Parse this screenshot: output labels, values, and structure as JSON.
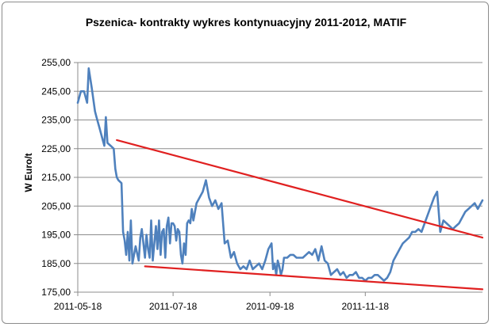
{
  "chart_data": {
    "type": "line",
    "title": "Pszenica- kontrakty wykres kontynuacyjny 2011-2012, MATIF",
    "xlabel": "",
    "ylabel": "W Euro/t",
    "ylim": [
      175,
      255
    ],
    "yticks": [
      "175,00",
      "185,00",
      "195,00",
      "205,00",
      "215,00",
      "225,00",
      "235,00",
      "245,00",
      "255,00"
    ],
    "xticks": [
      "2011-05-18",
      "2011-07-18",
      "2011-09-18",
      "2011-11-18"
    ],
    "x_range_days": [
      0,
      259
    ],
    "grid": "horizontal",
    "legend": "none",
    "series": [
      {
        "color": "#4f81bd",
        "x": [
          0,
          2,
          4,
          6,
          7,
          9,
          11,
          12,
          14,
          16,
          17,
          18,
          19,
          21,
          23,
          24,
          25,
          26,
          28,
          29,
          30,
          31,
          32,
          33,
          34,
          35,
          37,
          39,
          40,
          41,
          43,
          44,
          45,
          46,
          47,
          48,
          50,
          51,
          52,
          53,
          54,
          55,
          56,
          57,
          58,
          59,
          60,
          61,
          62,
          63,
          64,
          65,
          66,
          67,
          68,
          69,
          70,
          71,
          72,
          73,
          74,
          76,
          78,
          80,
          82,
          84,
          86,
          88,
          90,
          92,
          94,
          96,
          98,
          100,
          102,
          104,
          106,
          108,
          110,
          112,
          114,
          116,
          118,
          120,
          122,
          124,
          125,
          126,
          127,
          128,
          129,
          130,
          131,
          132,
          133,
          134,
          136,
          138,
          140,
          142,
          144,
          146,
          148,
          150,
          152,
          154,
          156,
          158,
          160,
          162,
          164,
          166,
          168,
          170,
          172,
          174,
          176,
          178,
          180,
          182,
          184,
          186,
          188,
          190,
          192,
          194,
          196,
          198,
          200,
          202,
          204,
          206,
          208,
          210,
          212,
          214,
          216,
          218,
          220,
          222,
          224,
          226,
          228,
          230,
          232,
          234,
          236,
          238,
          240,
          242,
          244,
          246,
          248,
          250,
          252,
          254,
          256,
          259
        ],
        "values": [
          241,
          245,
          245,
          241,
          253,
          246,
          238,
          236,
          232,
          228,
          226,
          236,
          227,
          226,
          225,
          218,
          215,
          214,
          213,
          196,
          193,
          188,
          196,
          186,
          200,
          185,
          191,
          186,
          194,
          197,
          187,
          195,
          190,
          187,
          200,
          186,
          198,
          190,
          200,
          188,
          196,
          197,
          187,
          198,
          201,
          192,
          199,
          199,
          198,
          193,
          197,
          196,
          188,
          185,
          192,
          188,
          199,
          200,
          199,
          204,
          200,
          206,
          208,
          210,
          214,
          208,
          205,
          207,
          204,
          206,
          192,
          193,
          187,
          189,
          185,
          183,
          184,
          183,
          186,
          183,
          184,
          185,
          183,
          186,
          190,
          192,
          183,
          185,
          181,
          186,
          184,
          181,
          183,
          187,
          187,
          187,
          188,
          188,
          187,
          187,
          187,
          188,
          189,
          188,
          190,
          186,
          191,
          186,
          185,
          181,
          182,
          183,
          181,
          182,
          180,
          181,
          181,
          182,
          180,
          180,
          179,
          180,
          180,
          181,
          181,
          180,
          179,
          180,
          182,
          186,
          188,
          190,
          192,
          193,
          194,
          196,
          196,
          197,
          196,
          199,
          202,
          205,
          208,
          210,
          196,
          200,
          199,
          198,
          197,
          198,
          199,
          201,
          203,
          204,
          205,
          206,
          204,
          207
        ]
      },
      {
        "color": "#e02020",
        "x": [
          25,
          259
        ],
        "values": [
          228,
          194
        ]
      },
      {
        "color": "#e02020",
        "x": [
          43,
          259
        ],
        "values": [
          184,
          176
        ]
      }
    ]
  }
}
